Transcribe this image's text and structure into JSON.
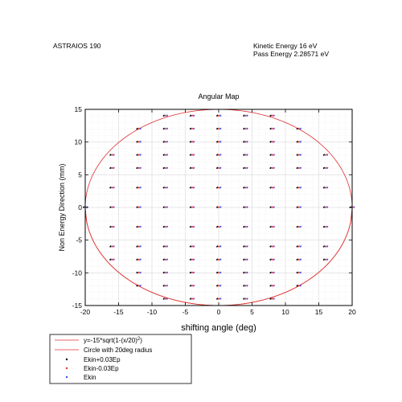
{
  "header": {
    "instrument": "ASTRAIOS 190",
    "kinetic_energy": "Kinetic Energy 16 eV",
    "pass_energy": "Pass Energy 2.28571 eV"
  },
  "chart_data": {
    "type": "scatter",
    "title": "Angular Map",
    "xlabel": "shifting angle (deg)",
    "ylabel": "Non Energy Direction (mm)",
    "xlim": [
      -20,
      20
    ],
    "ylim": [
      -15,
      15
    ],
    "xticks": [
      -20,
      -15,
      -10,
      -5,
      0,
      5,
      10,
      15,
      20
    ],
    "yticks": [
      -15,
      -10,
      -5,
      0,
      5,
      10,
      15
    ],
    "xticklabels": [
      "-20",
      "-15",
      "-10",
      "-5",
      "0",
      "5",
      "10",
      "15",
      "20"
    ],
    "yticklabels": [
      "-15",
      "-10",
      "-5",
      "0",
      "5",
      "10",
      "15"
    ],
    "grid": true,
    "legend_position": "below-left",
    "curves": [
      {
        "name": "y=-15*sqrt(1-(x/20)",
        "superscript": "2",
        "name_suffix": ")",
        "color": "#e03030",
        "kind": "ellipse-lower",
        "a": 20,
        "b": 15
      },
      {
        "name": "Circle with 20deg radius",
        "color": "#e03030",
        "kind": "ellipse",
        "a": 20,
        "b": 15
      }
    ],
    "series": [
      {
        "name": "Ekin+0.03Ep",
        "color": "#000000",
        "marker": "dot",
        "x_offset": -0.25
      },
      {
        "name": "Ekin-0.03Ep",
        "color": "#e8362f",
        "marker": "dot",
        "x_offset": 0.0
      },
      {
        "name": "Ekin",
        "color": "#4a4aee",
        "marker": "dot",
        "x_offset": 0.25
      }
    ],
    "grid_columns_x": [
      -20,
      -16,
      -12,
      -8,
      -4,
      0,
      4,
      8,
      12,
      16,
      20
    ],
    "grid_rows_y": [
      -14,
      -12,
      -10,
      -8,
      -6,
      -3,
      0,
      3,
      6,
      8,
      10,
      12,
      14
    ]
  }
}
